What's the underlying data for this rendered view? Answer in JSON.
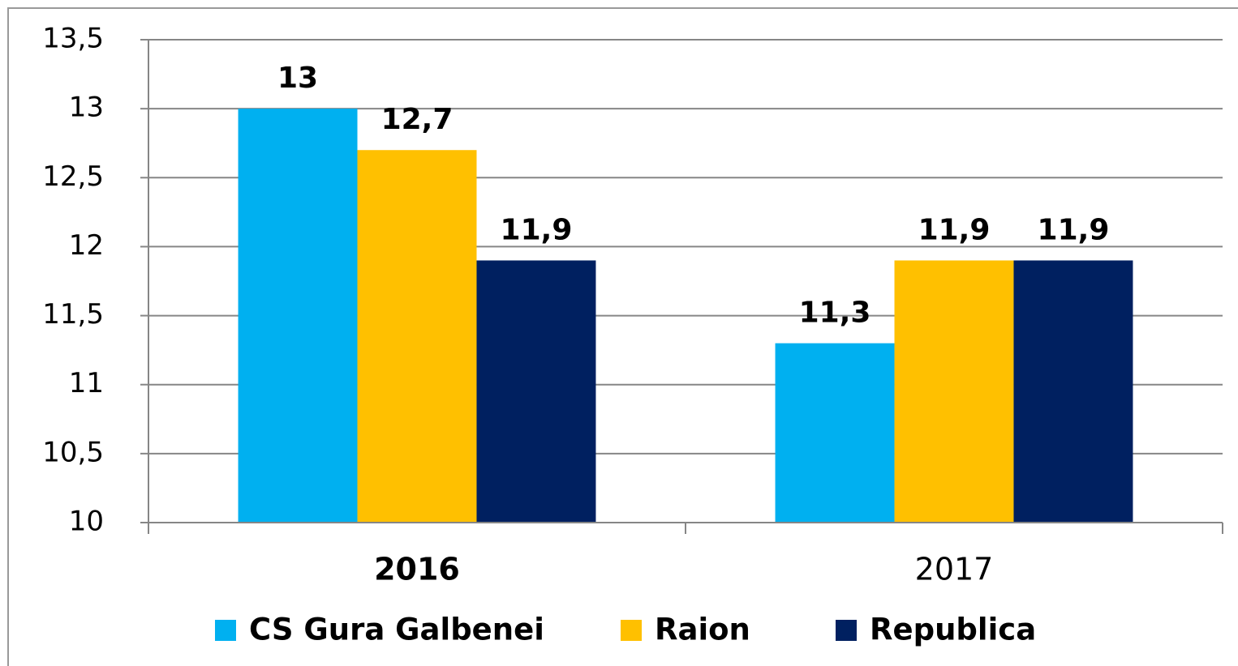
{
  "chart_data": {
    "type": "bar",
    "categories": [
      "2016",
      "2017"
    ],
    "series": [
      {
        "name": "CS Gura Galbenei",
        "color": "#00b0f0",
        "values": [
          13,
          11.3
        ],
        "value_labels": [
          "13",
          "11,3"
        ]
      },
      {
        "name": "Raion",
        "color": "#ffc000",
        "values": [
          12.7,
          11.9
        ],
        "value_labels": [
          "12,7",
          "11,9"
        ]
      },
      {
        "name": "Republica",
        "color": "#002060",
        "values": [
          11.9,
          11.9
        ],
        "value_labels": [
          "11,9",
          "11,9"
        ]
      }
    ],
    "ylim": [
      10,
      13.5
    ],
    "yticks": [
      10,
      {
        "value": 10.5,
        "label": "10,5"
      },
      11,
      {
        "value": 11.5,
        "label": "11,5"
      },
      12,
      {
        "value": 12.5,
        "label": "12,5"
      },
      13,
      {
        "value": 13.5,
        "label": "13,5"
      }
    ],
    "grid": true,
    "legend": "bottom"
  }
}
